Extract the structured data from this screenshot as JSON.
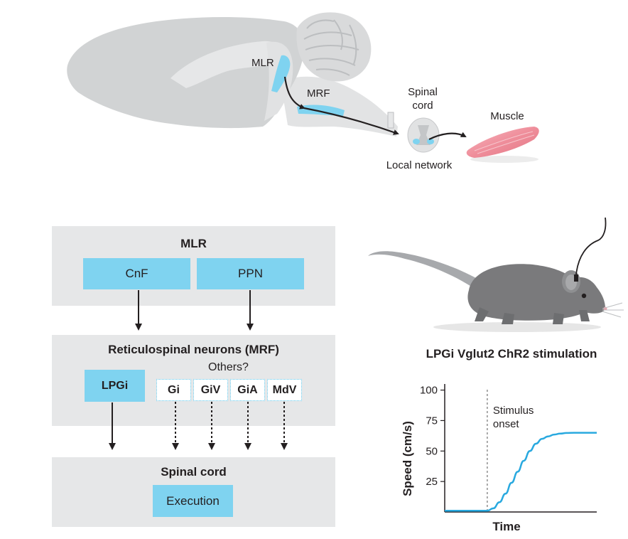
{
  "brain": {
    "mlr_label": "MLR",
    "mrf_label": "MRF",
    "spinal_cord_label_line1": "Spinal",
    "spinal_cord_label_line2": "cord",
    "local_network_label": "Local network",
    "muscle_label": "Muscle"
  },
  "flow": {
    "mlr_panel": {
      "title": "MLR",
      "boxes": [
        "CnF",
        "PPN"
      ]
    },
    "mrf_panel": {
      "title": "Reticulospinal neurons (MRF)",
      "main_box": "LPGi",
      "others_label": "Others?",
      "other_boxes": [
        "Gi",
        "GiV",
        "GiA",
        "MdV"
      ]
    },
    "spinal_panel": {
      "title": "Spinal cord",
      "box": "Execution"
    }
  },
  "chart_data": {
    "type": "line",
    "title": "LPGi Vglut2 ChR2 stimulation",
    "xlabel": "Time",
    "ylabel": "Speed (cm/s)",
    "y_ticks": [
      25,
      50,
      75,
      100
    ],
    "ylim": [
      0,
      105
    ],
    "xlim": [
      0,
      10
    ],
    "stimulus_onset_x": 2.8,
    "annotation_line1": "Stimulus",
    "annotation_line2": "onset",
    "series": [
      {
        "x": [
          0,
          2.8,
          3.2,
          3.6,
          4.0,
          4.4,
          4.8,
          5.2,
          5.6,
          6.0,
          6.4,
          6.8,
          7.2,
          7.6,
          8.0,
          8.5,
          9.0,
          9.5,
          10
        ],
        "values": [
          1,
          1,
          3,
          8,
          15,
          24,
          33,
          42,
          50,
          56,
          60,
          62,
          63.5,
          64.3,
          64.8,
          65,
          65,
          65,
          65
        ]
      }
    ],
    "colors": {
      "line": "#29a9df",
      "onset": "#555555"
    }
  },
  "colors": {
    "region": "#7fd3f0",
    "panel": "#e6e7e8",
    "brain": "#d1d3d4",
    "muscle": "#f29aa5",
    "mouse": "#7a7a7c"
  }
}
